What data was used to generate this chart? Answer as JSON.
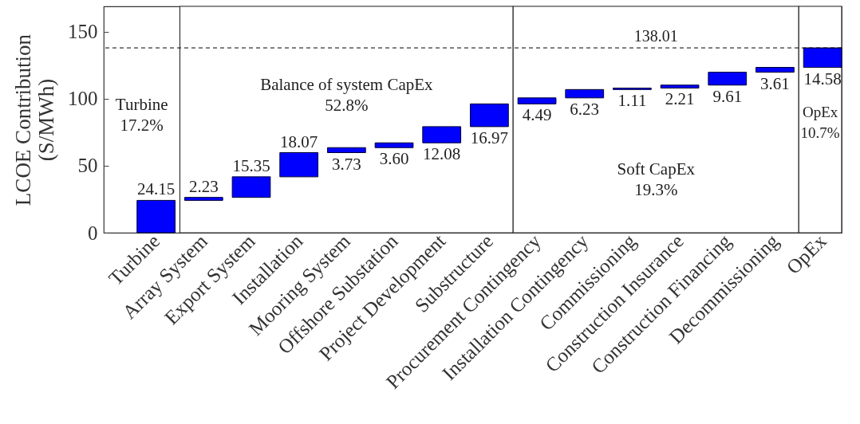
{
  "chart_data": {
    "type": "bar",
    "ylabel": "LCOE Contribution\n(S/MWh)",
    "categories": [
      "Turbine",
      "Array System",
      "Export System",
      "Installation",
      "Mooring System",
      "Offshore Substation",
      "Project Development",
      "Substructure",
      "Procurement Contingency",
      "Installation Contingency",
      "Commissioning",
      "Construction Insurance",
      "Construction Financing",
      "Decommissioning",
      "OpEx"
    ],
    "values": [
      24.15,
      2.23,
      15.35,
      18.07,
      3.73,
      3.6,
      12.08,
      16.97,
      4.49,
      6.23,
      1.11,
      2.21,
      9.61,
      3.61,
      14.58
    ],
    "base": [
      0,
      24.15,
      26.38,
      41.73,
      59.8,
      63.53,
      67.13,
      79.21,
      96.18,
      100.67,
      106.9,
      108.01,
      110.22,
      119.83,
      123.44
    ],
    "color": "#0000ff",
    "value_labels": [
      "24.15",
      "2.23",
      "15.35",
      "18.07",
      "3.73",
      "3.60",
      "12.08",
      "16.97",
      "4.49",
      "6.23",
      "1.11",
      "2.21",
      "9.61",
      "3.61",
      "14.58"
    ],
    "ylim": [
      0,
      169
    ],
    "yticks": [
      0,
      50,
      100,
      150
    ],
    "grid": false,
    "annotations": [
      "Turbine\n17.2%"
    ],
    "ref_lines": [
      {
        "axis": "y",
        "value": 138.01,
        "label": "138.01",
        "line_style": "dashed"
      }
    ],
    "bands": [
      {
        "axis": "x",
        "from": "Array System",
        "to": "Substructure",
        "label": "Balance of system CapEx\n52.8%",
        "color": "#ffffff"
      },
      {
        "axis": "x",
        "from": "Procurement Contingency",
        "to": "Decommissioning",
        "label": "Soft CapEx\n19.3%",
        "color": "#ffffff"
      },
      {
        "axis": "x",
        "from": "OpEx",
        "to": "OpEx",
        "label": "OpEx\n10.7%",
        "color": "#ffffff"
      }
    ]
  }
}
